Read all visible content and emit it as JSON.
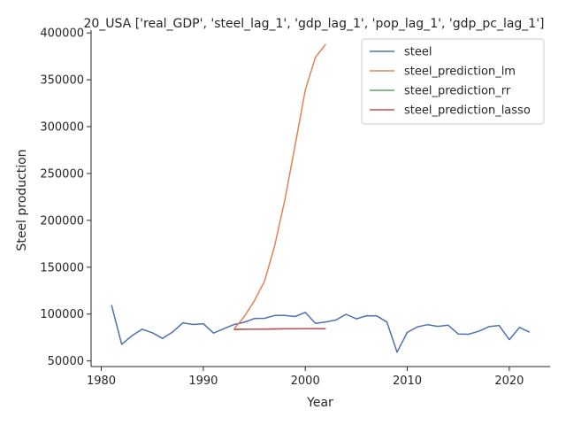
{
  "chart_data": {
    "type": "line",
    "title": "20_USA ['real_GDP', 'steel_lag_1', 'gdp_lag_1', 'pop_lag_1', 'gdp_pc_lag_1']",
    "xlabel": "Year",
    "ylabel": "Steel production",
    "xlim": [
      1979,
      2024
    ],
    "ylim": [
      44000,
      403000
    ],
    "xticks": [
      1980,
      1990,
      2000,
      2010,
      2020
    ],
    "yticks": [
      50000,
      100000,
      150000,
      200000,
      250000,
      300000,
      350000,
      400000
    ],
    "grid": false,
    "legend_position": "top-right",
    "series": [
      {
        "name": "steel",
        "color": "#4c72b0",
        "x": [
          1981,
          1982,
          1983,
          1984,
          1985,
          1986,
          1987,
          1988,
          1989,
          1990,
          1991,
          1992,
          1993,
          1994,
          1995,
          1996,
          1997,
          1998,
          1999,
          2000,
          2001,
          2002,
          2003,
          2004,
          2005,
          2006,
          2007,
          2008,
          2009,
          2010,
          2011,
          2012,
          2013,
          2014,
          2015,
          2016,
          2017,
          2018,
          2019,
          2020,
          2021,
          2022
        ],
        "y": [
          109600,
          67700,
          76800,
          83900,
          80100,
          74000,
          80900,
          90700,
          88900,
          89700,
          79700,
          84300,
          88800,
          91200,
          95200,
          95500,
          98500,
          98600,
          97400,
          101800,
          90100,
          91600,
          93700,
          99700,
          94900,
          98200,
          98100,
          91400,
          59400,
          80500,
          86400,
          88700,
          86900,
          88200,
          78800,
          78500,
          81600,
          86600,
          87800,
          72700,
          85800,
          80700
        ]
      },
      {
        "name": "steel_prediction_lm",
        "color": "#dd8452",
        "x": [
          1993,
          1994,
          1995,
          1996,
          1997,
          1998,
          1999,
          2000,
          2001,
          2002
        ],
        "y": [
          84000,
          97000,
          114000,
          135000,
          173000,
          222000,
          280000,
          339000,
          374000,
          388000
        ]
      },
      {
        "name": "steel_prediction_rr",
        "color": "#55a868",
        "x": [
          1993,
          1994,
          1995,
          1996,
          1997,
          1998,
          1999,
          2000,
          2001,
          2002
        ],
        "y": [
          83700,
          83900,
          84000,
          84100,
          84200,
          84300,
          84300,
          84400,
          84500,
          84300
        ]
      },
      {
        "name": "steel_prediction_lasso",
        "color": "#c44e52",
        "x": [
          1993,
          1994,
          1995,
          1996,
          1997,
          1998,
          1999,
          2000,
          2001,
          2002
        ],
        "y": [
          83600,
          83800,
          83900,
          84000,
          84100,
          84200,
          84200,
          84300,
          84400,
          84200
        ]
      }
    ]
  }
}
